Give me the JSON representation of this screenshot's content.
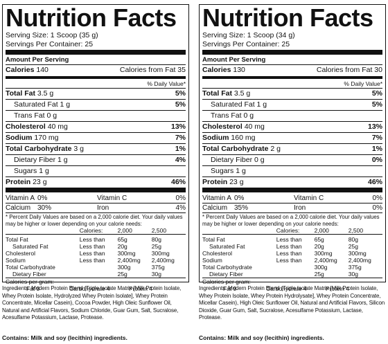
{
  "panels": [
    {
      "title": "Nutrition Facts",
      "serving_size": "Serving Size: 1 Scoop (35 g)",
      "servings_per_container": "Servings Per Container: 25",
      "amount_per_serving": "Amount Per Serving",
      "calories_label": "Calories",
      "calories_value": "140",
      "calories_fat": "Calories from Fat 35",
      "dv_header": "% Daily Value*",
      "total_fat": {
        "label": "Total Fat",
        "amount": "3.5 g",
        "dv": "5%"
      },
      "sat_fat": {
        "label": "Saturated Fat",
        "amount": "1 g",
        "dv": "5%"
      },
      "trans_fat": {
        "label": "Trans Fat",
        "amount": "0 g"
      },
      "cholesterol": {
        "label": "Cholesterol",
        "amount": "40 mg",
        "dv": "13%"
      },
      "sodium": {
        "label": "Sodium",
        "amount": "170 mg",
        "dv": "7%"
      },
      "total_carb": {
        "label": "Total Carbohydrate",
        "amount": "3 g",
        "dv": "1%"
      },
      "fiber": {
        "label": "Dietary Fiber",
        "amount": "1 g",
        "dv": "4%"
      },
      "sugars": {
        "label": "Sugars",
        "amount": "1 g"
      },
      "protein": {
        "label": "Protein",
        "amount": "23 g",
        "dv": "46%"
      },
      "vitamin_a": {
        "label": "Vitamin A",
        "dv": "0%"
      },
      "vitamin_c": {
        "label": "Vitamin C",
        "dv": "0%"
      },
      "calcium": {
        "label": "Calcium",
        "dv": "30%"
      },
      "iron": {
        "label": "Iron",
        "dv": "4%"
      },
      "ingredients": "Ingredients: Modern Protein Blend (Triple Isolate Matrix [Milk Protein Isolate, Whey Protein Isolate, Hydrolyzed Whey Protein Isolate], Whey Protein Concentrate, Micellar Casein), Cocoa Powder, High Oleic Sunflower Oil, Natural and Artificial Flavors, Sodium Chloride, Guar Gum, Salt, Sucralose, Acesulfame Potassium, Lactase, Protease.",
      "contains": "Contains: Milk and soy (lecithin) ingredients."
    },
    {
      "title": "Nutrition Facts",
      "serving_size": "Serving Size: 1 Scoop (34 g)",
      "servings_per_container": "Servings Per Container: 25",
      "amount_per_serving": "Amount Per Serving",
      "calories_label": "Calories",
      "calories_value": "130",
      "calories_fat": "Calories from Fat 30",
      "dv_header": "% Daily Value*",
      "total_fat": {
        "label": "Total Fat",
        "amount": "3.5 g",
        "dv": "5%"
      },
      "sat_fat": {
        "label": "Saturated Fat",
        "amount": "1 g",
        "dv": "5%"
      },
      "trans_fat": {
        "label": "Trans Fat",
        "amount": "0 g"
      },
      "cholesterol": {
        "label": "Cholesterol",
        "amount": "40 mg",
        "dv": "13%"
      },
      "sodium": {
        "label": "Sodium",
        "amount": "160 mg",
        "dv": "7%"
      },
      "total_carb": {
        "label": "Total Carbohydrate",
        "amount": "2 g",
        "dv": "1%"
      },
      "fiber": {
        "label": "Dietary Fiber",
        "amount": "0 g",
        "dv": "0%"
      },
      "sugars": {
        "label": "Sugars",
        "amount": "1 g"
      },
      "protein": {
        "label": "Protein",
        "amount": "23 g",
        "dv": "46%"
      },
      "vitamin_a": {
        "label": "Vitamin A",
        "dv": "0%"
      },
      "vitamin_c": {
        "label": "Vitamin C",
        "dv": "0%"
      },
      "calcium": {
        "label": "Calcium",
        "dv": "35%"
      },
      "iron": {
        "label": "Iron",
        "dv": "0%"
      },
      "ingredients": "Ingredients: Modern Protein Blend (Triple Isolate Matrix [Milk Protein Isolate, Whey Protein Isolate, Whey Protein Hydrolysate], Whey Protein Concentrate, Micellar Casein), High Oleic Sunflower Oil, Natural and Artificial Flavors, Silicon Dioxide, Guar Gum, Salt, Sucralose, Acesulfame Potassium, Lactase, Protease.",
      "contains": "Contains: Milk and soy (lecithin) ingredients."
    }
  ],
  "footnote": "* Percent Daily Values are based on a 2,000 calorie diet. Your daily values may be higher or lower depending on your calorie needs:",
  "reference": {
    "header": [
      "Calories:",
      "2,000",
      "2,500"
    ],
    "rows": [
      [
        "Total Fat",
        "Less than",
        "65g",
        "80g"
      ],
      [
        "Saturated Fat",
        "Less than",
        "20g",
        "25g"
      ],
      [
        "Cholesterol",
        "Less than",
        "300mg",
        "300mg"
      ],
      [
        "Sodium",
        "Less than",
        "2,400mg",
        "2,400mg"
      ],
      [
        "Total Carbohydrate",
        "",
        "300g",
        "375g"
      ],
      [
        "Dietary Fiber",
        "",
        "25g",
        "30g"
      ]
    ],
    "calories_per_gram": "Calories per gram:",
    "per_gram": [
      "Fat 9",
      "Carbohydrate 4",
      "Protein 4"
    ]
  }
}
